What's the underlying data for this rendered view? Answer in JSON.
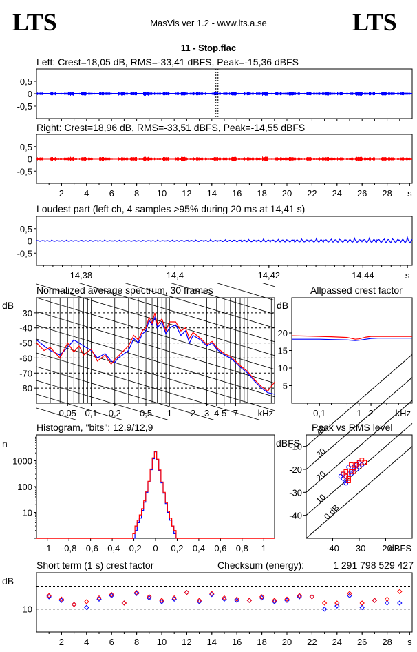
{
  "header": {
    "logo_left": "LTS",
    "logo_right": "LTS",
    "app_title": "MasVis ver 1.2 - www.lts.a.se",
    "file_name": "11 - Stop.flac"
  },
  "colors": {
    "left": "#0000ff",
    "right": "#ff0000",
    "grid": "#000000"
  },
  "chart_data": [
    {
      "id": "left-waveform",
      "type": "line",
      "title": "Left: Crest=18,05 dB, RMS=-33,41 dBFS, Peak=-15,36 dBFS",
      "series": [
        {
          "name": "Left",
          "color": "#0000ff"
        }
      ],
      "ylim": [
        -1,
        1
      ],
      "yticks": [
        "0,5",
        "0",
        "-0,5"
      ],
      "ytick_values": [
        0.5,
        0,
        -0.5
      ],
      "xlim": [
        0,
        30
      ],
      "marker_x": 14.41,
      "envelope": [
        0.05,
        0.02,
        0.06,
        0.03,
        0.04,
        0.08,
        0.03,
        0.07,
        0.04,
        0.03,
        0.06,
        0.05,
        0.02,
        0.07,
        0.04,
        0.06,
        0.03,
        0.08,
        0.05,
        0.04,
        0.06,
        0.03,
        0.05,
        0.07,
        0.04,
        0.06,
        0.05,
        0.03,
        0.06,
        0.04,
        0.05,
        0.07,
        0.03,
        0.06,
        0.04,
        0.05,
        0.08,
        0.03,
        0.06,
        0.04,
        0.07,
        0.05,
        0.03,
        0.06,
        0.04,
        0.05,
        0.07,
        0.04,
        0.06,
        0.03,
        0.05,
        0.08,
        0.04,
        0.06,
        0.03,
        0.07,
        0.05,
        0.04,
        0.06,
        0.04
      ]
    },
    {
      "id": "right-waveform",
      "type": "line",
      "title": "Right: Crest=18,96 dB, RMS=-33,51 dBFS, Peak=-14,55 dBFS",
      "series": [
        {
          "name": "Right",
          "color": "#ff0000"
        }
      ],
      "ylim": [
        -1,
        1
      ],
      "yticks": [
        "0,5",
        "0",
        "-0,5"
      ],
      "ytick_values": [
        0.5,
        0,
        -0.5
      ],
      "xlim": [
        0,
        30
      ],
      "xticks": [
        "2",
        "4",
        "6",
        "8",
        "10",
        "12",
        "14",
        "16",
        "18",
        "20",
        "22",
        "24",
        "26",
        "28",
        "s"
      ],
      "xtick_values": [
        2,
        4,
        6,
        8,
        10,
        12,
        14,
        16,
        18,
        20,
        22,
        24,
        26,
        28,
        29.8
      ],
      "envelope": [
        0.06,
        0.03,
        0.07,
        0.04,
        0.05,
        0.08,
        0.04,
        0.07,
        0.05,
        0.03,
        0.07,
        0.05,
        0.03,
        0.06,
        0.05,
        0.07,
        0.04,
        0.08,
        0.05,
        0.04,
        0.07,
        0.03,
        0.06,
        0.08,
        0.04,
        0.06,
        0.05,
        0.04,
        0.07,
        0.05,
        0.05,
        0.08,
        0.04,
        0.06,
        0.05,
        0.05,
        0.09,
        0.03,
        0.06,
        0.05,
        0.07,
        0.05,
        0.04,
        0.07,
        0.04,
        0.06,
        0.07,
        0.05,
        0.06,
        0.04,
        0.05,
        0.08,
        0.05,
        0.06,
        0.03,
        0.07,
        0.06,
        0.04,
        0.06,
        0.05
      ]
    },
    {
      "id": "loudest-part",
      "type": "line",
      "title": "Loudest part (left  ch, 4 samples >95% during 20 ms at 14,41 s)",
      "series": [
        {
          "name": "Left",
          "color": "#0000ff"
        }
      ],
      "ylim": [
        -1,
        1
      ],
      "yticks": [
        "0,5",
        "0",
        "-0,5"
      ],
      "ytick_values": [
        0.5,
        0,
        -0.5
      ],
      "xlim": [
        14.3705,
        14.4505
      ],
      "xticks": [
        "14,38",
        "14,4",
        "14,42",
        "14,44",
        "s"
      ],
      "xtick_values": [
        14.38,
        14.4,
        14.42,
        14.44,
        14.4495
      ]
    },
    {
      "id": "spectrum",
      "type": "line",
      "title": "Normalized average spectrum, 30 frames",
      "ylabel": "dB",
      "xlabel": "kHz",
      "log_x": true,
      "xlim": [
        0.02,
        22
      ],
      "ylim": [
        -90,
        -20
      ],
      "yticks": [
        "-30",
        "-40",
        "-50",
        "-60",
        "-70",
        "-80"
      ],
      "ytick_values": [
        -30,
        -40,
        -50,
        -60,
        -70,
        -80
      ],
      "xticks": [
        "0,05",
        "0,1",
        "0,2",
        "0,5",
        "1",
        "2",
        "3",
        "4",
        "5",
        "7"
      ],
      "xtick_values": [
        0.05,
        0.1,
        0.2,
        0.5,
        1,
        2,
        3,
        4,
        5,
        7
      ],
      "series": [
        {
          "name": "Left",
          "color": "#0000ff",
          "x": [
            0.02,
            0.025,
            0.03,
            0.04,
            0.05,
            0.06,
            0.07,
            0.08,
            0.1,
            0.12,
            0.15,
            0.18,
            0.2,
            0.22,
            0.25,
            0.3,
            0.35,
            0.4,
            0.45,
            0.5,
            0.55,
            0.6,
            0.65,
            0.7,
            0.8,
            0.9,
            1,
            1.2,
            1.4,
            1.6,
            1.8,
            2,
            2.5,
            3,
            3.5,
            4,
            5,
            6,
            7,
            8,
            10,
            12,
            15,
            18,
            22
          ],
          "y": [
            -48,
            -52,
            -55,
            -58,
            -53,
            -48,
            -50,
            -52,
            -55,
            -60,
            -57,
            -62,
            -63,
            -60,
            -58,
            -55,
            -47,
            -50,
            -44,
            -42,
            -35,
            -38,
            -33,
            -40,
            -36,
            -44,
            -40,
            -38,
            -45,
            -42,
            -50,
            -45,
            -48,
            -52,
            -50,
            -54,
            -58,
            -60,
            -63,
            -66,
            -70,
            -75,
            -80,
            -83,
            -84
          ]
        },
        {
          "name": "Right",
          "color": "#ff0000",
          "x": [
            0.02,
            0.025,
            0.03,
            0.04,
            0.05,
            0.06,
            0.07,
            0.08,
            0.1,
            0.12,
            0.15,
            0.18,
            0.2,
            0.22,
            0.25,
            0.3,
            0.35,
            0.4,
            0.45,
            0.5,
            0.55,
            0.6,
            0.65,
            0.7,
            0.8,
            0.9,
            1,
            1.2,
            1.4,
            1.6,
            1.8,
            2,
            2.5,
            3,
            3.5,
            4,
            5,
            6,
            7,
            8,
            10,
            12,
            15,
            18,
            22
          ],
          "y": [
            -50,
            -55,
            -53,
            -60,
            -50,
            -56,
            -52,
            -58,
            -54,
            -62,
            -58,
            -64,
            -61,
            -59,
            -56,
            -52,
            -45,
            -48,
            -42,
            -40,
            -33,
            -37,
            -30,
            -38,
            -34,
            -42,
            -36,
            -36,
            -42,
            -40,
            -47,
            -43,
            -47,
            -51,
            -49,
            -53,
            -57,
            -59,
            -62,
            -65,
            -69,
            -74,
            -79,
            -82,
            -76
          ]
        }
      ]
    },
    {
      "id": "allpassed-crest",
      "type": "line",
      "title": "Allpassed crest factor",
      "ylabel": "dB",
      "xlabel": "kHz",
      "log_x": true,
      "xlim": [
        0.02,
        22
      ],
      "ylim": [
        0,
        30
      ],
      "yticks": [
        "20",
        "15",
        "10",
        "5"
      ],
      "ytick_values": [
        20,
        15,
        10,
        5
      ],
      "xticks": [
        "0,1",
        "1",
        "2"
      ],
      "xtick_values": [
        0.1,
        1,
        2
      ],
      "series": [
        {
          "name": "Left",
          "color": "#0000ff",
          "x": [
            0.02,
            0.05,
            0.1,
            0.2,
            0.5,
            0.8,
            1,
            1.5,
            2,
            3,
            5,
            10,
            22
          ],
          "y": [
            18.2,
            18.2,
            18.2,
            18.1,
            18.0,
            17.8,
            17.9,
            18.2,
            18.4,
            18.5,
            18.5,
            18.5,
            18.5
          ]
        },
        {
          "name": "Right",
          "color": "#ff0000",
          "x": [
            0.02,
            0.05,
            0.1,
            0.2,
            0.5,
            0.8,
            1,
            1.5,
            2,
            3,
            5,
            10,
            22
          ],
          "y": [
            19.2,
            19.1,
            19.0,
            18.9,
            18.7,
            18.2,
            18.3,
            18.8,
            19.0,
            19.0,
            19.0,
            19.0,
            19.0
          ]
        }
      ]
    },
    {
      "id": "histogram",
      "type": "line",
      "title": "Histogram, \"bits\": 12,9/12,9",
      "ylabel": "n",
      "log_y": true,
      "xlim": [
        -1.1,
        1.1
      ],
      "ylim": [
        1,
        10000
      ],
      "yticks": [
        "1000",
        "100",
        "10"
      ],
      "ytick_values": [
        1000,
        100,
        10
      ],
      "xticks": [
        "-1",
        "-0,8",
        "-0,6",
        "-0,4",
        "-0,2",
        "0",
        "0,2",
        "0,4",
        "0,6",
        "0,8",
        "1"
      ],
      "xtick_values": [
        -1,
        -0.8,
        -0.6,
        -0.4,
        -0.2,
        0,
        0.2,
        0.4,
        0.6,
        0.8,
        1
      ],
      "series": [
        {
          "name": "Left",
          "color": "#0000ff",
          "x": [
            -0.2,
            -0.18,
            -0.16,
            -0.14,
            -0.12,
            -0.1,
            -0.08,
            -0.06,
            -0.04,
            -0.02,
            0,
            0.02,
            0.04,
            0.06,
            0.08,
            0.1,
            0.12,
            0.14,
            0.16,
            0.18,
            0.2
          ],
          "y": [
            1,
            2,
            4,
            6,
            12,
            25,
            60,
            150,
            450,
            1200,
            2200,
            1100,
            420,
            140,
            55,
            22,
            10,
            5,
            3,
            1.5,
            1
          ]
        },
        {
          "name": "Right",
          "color": "#ff0000",
          "x": [
            -0.22,
            -0.2,
            -0.18,
            -0.16,
            -0.14,
            -0.12,
            -0.1,
            -0.08,
            -0.06,
            -0.04,
            -0.02,
            0,
            0.02,
            0.04,
            0.06,
            0.08,
            0.1,
            0.12,
            0.14,
            0.16,
            0.18,
            0.2
          ],
          "y": [
            1,
            1.5,
            3,
            5,
            8,
            14,
            28,
            65,
            160,
            480,
            1300,
            2300,
            1150,
            440,
            150,
            60,
            24,
            11,
            6,
            3,
            2,
            1
          ]
        }
      ]
    },
    {
      "id": "peak-vs-rms",
      "type": "scatter",
      "title": "Peak vs RMS level",
      "ylabel": "dBFS",
      "xlabel": "dBFS",
      "xlim": [
        -50,
        -10
      ],
      "ylim": [
        -50,
        -5
      ],
      "yticks": [
        "-10",
        "-20",
        "-30",
        "-40"
      ],
      "ytick_values": [
        -10,
        -20,
        -30,
        -40
      ],
      "xticks": [
        "-40",
        "-30",
        "-20"
      ],
      "xtick_values": [
        -40,
        -30,
        -20
      ],
      "diagonal_labels": [
        "40",
        "30",
        "20",
        "10",
        "0 dB"
      ],
      "diagonal_offsets": [
        40,
        30,
        20,
        10,
        0
      ],
      "series": [
        {
          "name": "Left",
          "color": "#0000ff",
          "x": [
            -37,
            -36,
            -35,
            -34,
            -33,
            -32,
            -31,
            -30,
            -29,
            -35,
            -33,
            -31,
            -36,
            -34
          ],
          "y": [
            -23,
            -24,
            -25,
            -22,
            -21,
            -19,
            -18,
            -17,
            -18,
            -26,
            -22,
            -20,
            -22,
            -19
          ]
        },
        {
          "name": "Right",
          "color": "#ff0000",
          "x": [
            -36,
            -35,
            -34,
            -33,
            -32,
            -31,
            -30,
            -29,
            -28,
            -34,
            -32,
            -30,
            -35,
            -33
          ],
          "y": [
            -22,
            -23,
            -24,
            -21,
            -20,
            -18,
            -17,
            -16,
            -17,
            -25,
            -21,
            -19,
            -21,
            -18
          ]
        }
      ]
    },
    {
      "id": "short-term-crest",
      "type": "scatter",
      "title": "Short term (1 s) crest factor",
      "ylabel": "dB",
      "log_y": true,
      "xlim": [
        0,
        30
      ],
      "ylim": [
        5,
        30
      ],
      "yticks": [
        "10"
      ],
      "ytick_values": [
        10
      ],
      "dashed_levels": [
        10,
        20
      ],
      "xticks": [
        "2",
        "4",
        "6",
        "8",
        "10",
        "12",
        "14",
        "16",
        "18",
        "20",
        "22",
        "24",
        "26",
        "28",
        "s"
      ],
      "xtick_values": [
        2,
        4,
        6,
        8,
        10,
        12,
        14,
        16,
        18,
        20,
        22,
        24,
        26,
        28,
        29.8
      ],
      "series": [
        {
          "name": "Left",
          "color": "#0000ff",
          "x": [
            1,
            2,
            3,
            4,
            5,
            6,
            7,
            8,
            9,
            10,
            11,
            12,
            13,
            14,
            15,
            16,
            17,
            18,
            19,
            20,
            21,
            22,
            23,
            24,
            25,
            26,
            27,
            28,
            29
          ],
          "y": [
            14.5,
            13,
            11.5,
            10.5,
            13.5,
            15,
            12,
            16,
            14,
            12.5,
            13.5,
            16.5,
            12.5,
            15.5,
            13.5,
            13,
            13,
            14,
            12.5,
            13,
            14.5,
            14.5,
            10,
            11,
            15,
            10.5,
            13,
            12,
            12
          ]
        },
        {
          "name": "Right",
          "color": "#ff0000",
          "x": [
            1,
            2,
            3,
            4,
            5,
            6,
            7,
            8,
            9,
            10,
            11,
            12,
            13,
            14,
            15,
            16,
            17,
            18,
            19,
            20,
            21,
            22,
            23,
            24,
            25,
            26,
            27,
            28,
            29
          ],
          "y": [
            15,
            13.5,
            11.5,
            12.5,
            14,
            15.5,
            12,
            16.5,
            14.5,
            13,
            14,
            16.5,
            13,
            16,
            14,
            13.5,
            13,
            14.5,
            13,
            13.5,
            15,
            14.5,
            12,
            12,
            16,
            12,
            13,
            13.5,
            17
          ]
        }
      ]
    }
  ],
  "checksum": {
    "label": "Checksum (energy):",
    "value": "1 291 798 529 427"
  }
}
